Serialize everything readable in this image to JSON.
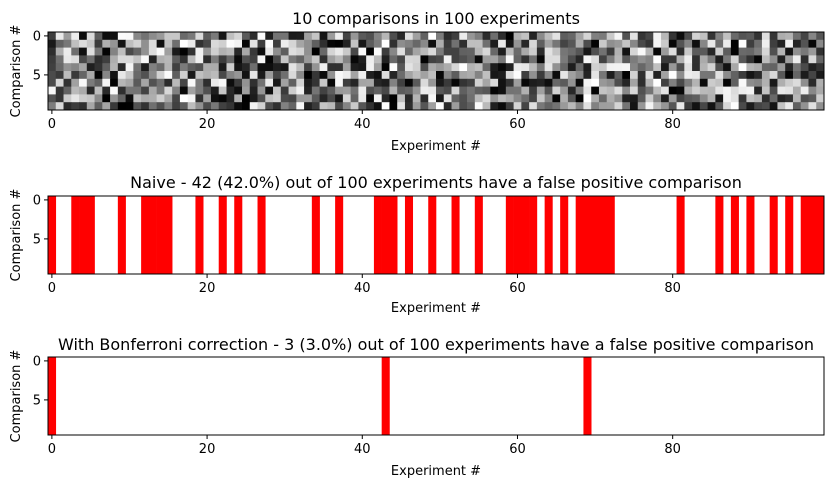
{
  "chart_data": [
    {
      "type": "heatmap",
      "title": "10 comparisons in 100 experiments",
      "xlabel": "Experiment #",
      "ylabel": "Comparison #",
      "xticks": [
        0,
        20,
        40,
        60,
        80
      ],
      "yticks": [
        0,
        5
      ],
      "xlim": [
        -0.5,
        99.5
      ],
      "ylim": [
        9.5,
        -0.5
      ],
      "rows": 10,
      "cols": 100,
      "colormap": "gray",
      "seed": 7
    },
    {
      "type": "heatmap",
      "title": "Naive - 42 (42.0%) out of 100 experiments have a false positive comparison",
      "xlabel": "Experiment #",
      "ylabel": "Comparison #",
      "xticks": [
        0,
        20,
        40,
        60,
        80
      ],
      "yticks": [
        0,
        5
      ],
      "xlim": [
        -0.5,
        99.5
      ],
      "ylim": [
        9.5,
        -0.5
      ],
      "rows": 10,
      "cols": 100,
      "color": "#ff0000",
      "false_positive_experiments": [
        0,
        3,
        4,
        5,
        9,
        12,
        13,
        14,
        15,
        19,
        22,
        24,
        27,
        34,
        37,
        42,
        43,
        44,
        46,
        49,
        52,
        55,
        59,
        60,
        61,
        62,
        64,
        66,
        68,
        69,
        70,
        71,
        72,
        81,
        86,
        88,
        90,
        93,
        95,
        97,
        98,
        99
      ]
    },
    {
      "type": "heatmap",
      "title": "With Bonferroni correction - 3 (3.0%) out of 100 experiments have a false positive comparison",
      "xlabel": "Experiment #",
      "ylabel": "Comparison #",
      "xticks": [
        0,
        20,
        40,
        60,
        80
      ],
      "yticks": [
        0,
        5
      ],
      "xlim": [
        -0.5,
        99.5
      ],
      "ylim": [
        9.5,
        -0.5
      ],
      "rows": 10,
      "cols": 100,
      "color": "#ff0000",
      "false_positive_experiments": [
        0,
        43,
        69
      ]
    }
  ]
}
